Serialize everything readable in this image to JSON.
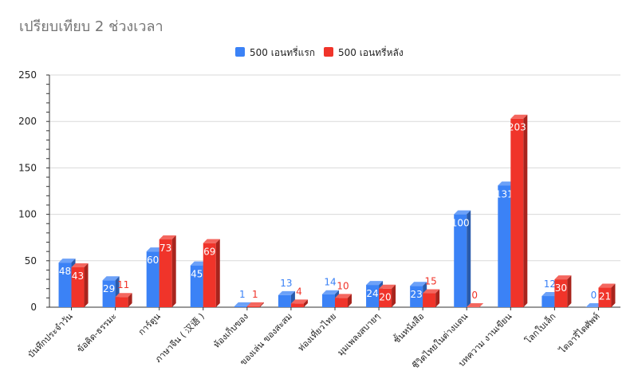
{
  "chart_data": {
    "type": "bar",
    "title": "เปรียบเทียบ 2 ช่วงเวลา",
    "xlabel": "",
    "ylabel": "",
    "ylim": [
      0,
      250
    ],
    "yticks": [
      0,
      50,
      100,
      150,
      200,
      250
    ],
    "grid": true,
    "legend_position": "top",
    "style": "3d",
    "categories": [
      "บันทึกประจำวัน",
      "ข้อคิด-ธรรมะ",
      "การ์ตูน",
      "ภาษาจีน ( 汉语 )",
      "ห้องเก็บของ",
      "ของเล่น ของสะสม",
      "ท่องเที่ยวไทย",
      "มุมเพลงสบายๆ",
      "ชั้นหนังสือ",
      "ชีวิตไทยในต่างแดน",
      "บทความ งานเขียน",
      "โลกใบเล็ก",
      "ไดอารี่ไดศัพท์"
    ],
    "series": [
      {
        "name": "500 เอนทรี่แรก",
        "color": "#3b82f6",
        "values": [
          48,
          29,
          60,
          45,
          1,
          13,
          14,
          24,
          23,
          100,
          131,
          12,
          0
        ]
      },
      {
        "name": "500 เอนทรี่หลัง",
        "color": "#f0342a",
        "values": [
          43,
          11,
          73,
          69,
          1,
          4,
          10,
          20,
          15,
          0,
          203,
          30,
          21
        ]
      }
    ]
  }
}
